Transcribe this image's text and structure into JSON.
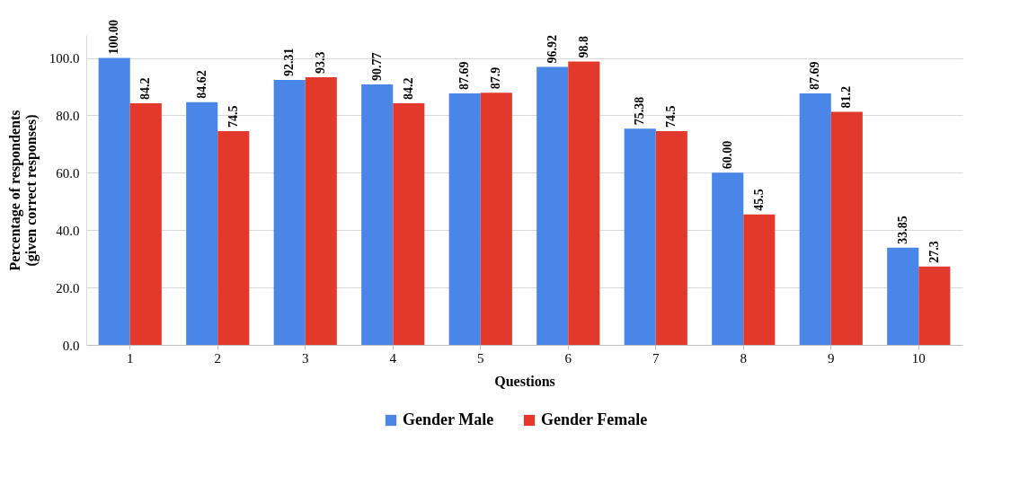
{
  "chart_data": {
    "type": "bar",
    "xlabel": "Questions",
    "ylabel": "Percentage of respondents (given correct responses)",
    "categories": [
      "1",
      "2",
      "3",
      "4",
      "5",
      "6",
      "7",
      "8",
      "9",
      "10"
    ],
    "series": [
      {
        "name": "Gender Male",
        "color": "#4a86e8",
        "values": [
          100.0,
          84.62,
          92.31,
          90.77,
          87.69,
          96.92,
          75.38,
          60.0,
          87.69,
          33.85
        ],
        "value_labels": [
          "100.00",
          "84.62",
          "92.31",
          "90.77",
          "87.69",
          "96.92",
          "75.38",
          "60.00",
          "87.69",
          "33.85"
        ]
      },
      {
        "name": "Gender Female",
        "color": "#e3392c",
        "values": [
          84.2,
          74.5,
          93.3,
          84.2,
          87.9,
          98.8,
          74.5,
          45.5,
          81.2,
          27.3
        ],
        "value_labels": [
          "84.2",
          "74.5",
          "93.3",
          "84.2",
          "87.9",
          "98.8",
          "74.5",
          "45.5",
          "81.2",
          "27.3"
        ]
      }
    ],
    "ylim": [
      0,
      108
    ],
    "yticks": [
      {
        "value": 0,
        "label": "0.0"
      },
      {
        "value": 20,
        "label": "20.0"
      },
      {
        "value": 40,
        "label": "40.0"
      },
      {
        "value": 60,
        "label": "60.0"
      },
      {
        "value": 80,
        "label": "80.0"
      },
      {
        "value": 100,
        "label": "100.0"
      }
    ],
    "grid": "y",
    "legend": "bottom"
  }
}
